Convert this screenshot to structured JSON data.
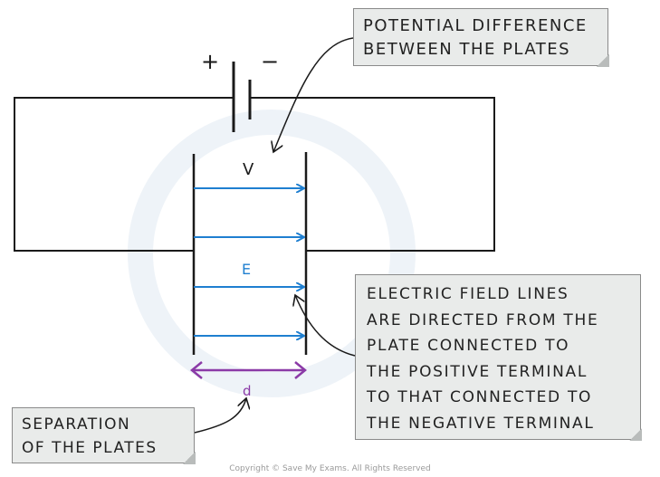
{
  "diagram": {
    "plus_sign": "+",
    "minus_sign": "−",
    "voltage_label": "V",
    "field_label": "E",
    "separation_label": "d"
  },
  "notes": {
    "potential_difference": [
      "POTENTIAL DIFFERENCE",
      "BETWEEN THE PLATES"
    ],
    "field_lines": [
      "ELECTRIC FIELD LINES",
      "ARE DIRECTED FROM THE",
      "PLATE CONNECTED TO",
      "THE POSITIVE TERMINAL",
      "TO THAT CONNECTED TO",
      "THE NEGATIVE TERMINAL"
    ],
    "separation": [
      "SEPARATION",
      "OF THE PLATES"
    ]
  },
  "copyright": "Copyright © Save My Exams. All Rights Reserved",
  "colors": {
    "wire": "#1a1a1a",
    "field_lines": "#1f7fd0",
    "separation": "#8b3aa7",
    "note_bg": "#e9ebea",
    "note_border": "#8a8a8a"
  }
}
